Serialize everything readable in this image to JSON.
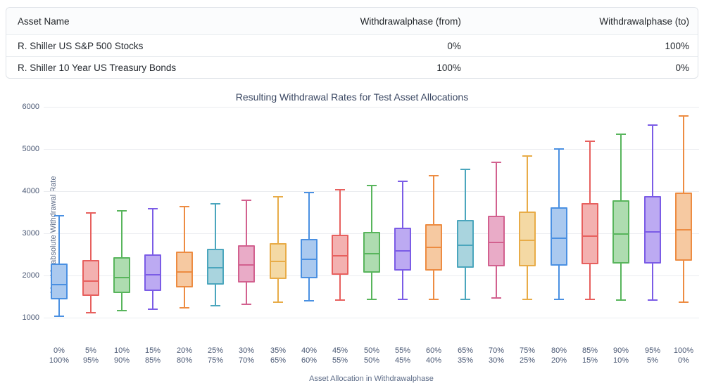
{
  "table": {
    "headers": [
      "Asset Name",
      "Withdrawalphase (from)",
      "Withdrawalphase (to)"
    ],
    "rows": [
      {
        "asset": "R. Shiller US S&P 500 Stocks",
        "from": "0%",
        "to": "100%"
      },
      {
        "asset": "R. Shiller 10 Year US Treasury Bonds",
        "from": "100%",
        "to": "0%"
      }
    ]
  },
  "chart_data": {
    "type": "boxplot",
    "title": "Resulting Withdrawal Rates for Test Asset Allocations",
    "xlabel": "Asset Allocation in Withdrawalphase",
    "ylabel": "Monthly absolute Withdrawal Rate",
    "ylim": [
      1000,
      6000
    ],
    "yticks": [
      1000,
      2000,
      3000,
      4000,
      5000,
      6000
    ],
    "grid": "horizontal-only",
    "categories": [
      {
        "top": "0%",
        "bottom": "100%"
      },
      {
        "top": "5%",
        "bottom": "95%"
      },
      {
        "top": "10%",
        "bottom": "90%"
      },
      {
        "top": "15%",
        "bottom": "85%"
      },
      {
        "top": "20%",
        "bottom": "80%"
      },
      {
        "top": "25%",
        "bottom": "75%"
      },
      {
        "top": "30%",
        "bottom": "70%"
      },
      {
        "top": "35%",
        "bottom": "65%"
      },
      {
        "top": "40%",
        "bottom": "60%"
      },
      {
        "top": "45%",
        "bottom": "55%"
      },
      {
        "top": "50%",
        "bottom": "50%"
      },
      {
        "top": "55%",
        "bottom": "45%"
      },
      {
        "top": "60%",
        "bottom": "40%"
      },
      {
        "top": "65%",
        "bottom": "35%"
      },
      {
        "top": "70%",
        "bottom": "30%"
      },
      {
        "top": "75%",
        "bottom": "25%"
      },
      {
        "top": "80%",
        "bottom": "20%"
      },
      {
        "top": "85%",
        "bottom": "15%"
      },
      {
        "top": "90%",
        "bottom": "10%"
      },
      {
        "top": "95%",
        "bottom": "5%"
      },
      {
        "top": "100%",
        "bottom": "0%"
      }
    ],
    "boxes": [
      {
        "min": 1040,
        "q1": 1430,
        "median": 1790,
        "q3": 2290,
        "max": 3410
      },
      {
        "min": 1120,
        "q1": 1510,
        "median": 1870,
        "q3": 2360,
        "max": 3480
      },
      {
        "min": 1160,
        "q1": 1580,
        "median": 1950,
        "q3": 2430,
        "max": 3530
      },
      {
        "min": 1200,
        "q1": 1640,
        "median": 2010,
        "q3": 2500,
        "max": 3590
      },
      {
        "min": 1240,
        "q1": 1710,
        "median": 2080,
        "q3": 2570,
        "max": 3640
      },
      {
        "min": 1290,
        "q1": 1780,
        "median": 2180,
        "q3": 2640,
        "max": 3700
      },
      {
        "min": 1320,
        "q1": 1840,
        "median": 2250,
        "q3": 2710,
        "max": 3790
      },
      {
        "min": 1360,
        "q1": 1920,
        "median": 2340,
        "q3": 2770,
        "max": 3870
      },
      {
        "min": 1400,
        "q1": 1940,
        "median": 2390,
        "q3": 2860,
        "max": 3960
      },
      {
        "min": 1420,
        "q1": 2020,
        "median": 2460,
        "q3": 2960,
        "max": 4030
      },
      {
        "min": 1430,
        "q1": 2060,
        "median": 2520,
        "q3": 3030,
        "max": 4130
      },
      {
        "min": 1440,
        "q1": 2110,
        "median": 2580,
        "q3": 3140,
        "max": 4240
      },
      {
        "min": 1430,
        "q1": 2120,
        "median": 2670,
        "q3": 3210,
        "max": 4370
      },
      {
        "min": 1440,
        "q1": 2180,
        "median": 2710,
        "q3": 3320,
        "max": 4520
      },
      {
        "min": 1460,
        "q1": 2210,
        "median": 2780,
        "q3": 3420,
        "max": 4680
      },
      {
        "min": 1440,
        "q1": 2220,
        "median": 2830,
        "q3": 3520,
        "max": 4830
      },
      {
        "min": 1430,
        "q1": 2230,
        "median": 2890,
        "q3": 3610,
        "max": 5000
      },
      {
        "min": 1430,
        "q1": 2260,
        "median": 2940,
        "q3": 3710,
        "max": 5180
      },
      {
        "min": 1420,
        "q1": 2280,
        "median": 2990,
        "q3": 3790,
        "max": 5350
      },
      {
        "min": 1410,
        "q1": 2290,
        "median": 3040,
        "q3": 3880,
        "max": 5560
      },
      {
        "min": 1360,
        "q1": 2350,
        "median": 3080,
        "q3": 3960,
        "max": 5780
      }
    ],
    "palette": [
      {
        "name": "blue",
        "stroke": "#4a90e2",
        "fill": "#aac9ef"
      },
      {
        "name": "red",
        "stroke": "#e7605e",
        "fill": "#f3b1b0"
      },
      {
        "name": "green",
        "stroke": "#58b55c",
        "fill": "#aedcb0"
      },
      {
        "name": "purple",
        "stroke": "#7b5ce6",
        "fill": "#bcaaf2"
      },
      {
        "name": "orange",
        "stroke": "#ed8c42",
        "fill": "#f6c9a1"
      },
      {
        "name": "teal",
        "stroke": "#4ba6bd",
        "fill": "#a9d4de"
      },
      {
        "name": "pink",
        "stroke": "#d2618f",
        "fill": "#e9abc7"
      },
      {
        "name": "gold",
        "stroke": "#e8ac48",
        "fill": "#f4d9a4"
      }
    ],
    "legend": "none"
  }
}
